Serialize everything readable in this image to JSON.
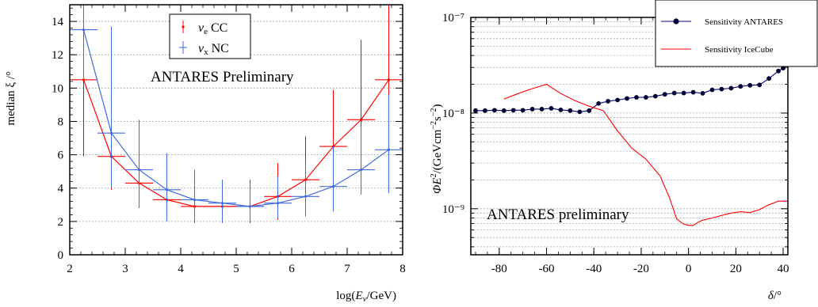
{
  "chart_data": [
    {
      "type": "line",
      "ylabel": "median ξ /°",
      "xlabel": "log(E_ν/GeV)",
      "xlim": [
        2,
        8
      ],
      "ylim": [
        0,
        15
      ],
      "xticks": [
        "2",
        "3",
        "4",
        "5",
        "6",
        "7",
        "8"
      ],
      "yticks": [
        "0",
        "2",
        "4",
        "6",
        "8",
        "10",
        "12",
        "14"
      ],
      "grid": "horizontal-dotted",
      "annotation": "ANTARES Preliminary",
      "legend_position": "top-right",
      "legend_label_prefix": "ν",
      "series": [
        {
          "name": "ν_e CC",
          "label_sub": "e",
          "label_rest": " CC",
          "color": "#ff0000",
          "x": [
            2.25,
            2.75,
            3.25,
            3.75,
            4.25,
            4.75,
            5.25,
            5.75,
            6.25,
            6.75,
            7.25,
            7.75
          ],
          "y": [
            10.5,
            5.9,
            4.3,
            3.3,
            2.9,
            2.9,
            2.9,
            3.5,
            4.5,
            6.5,
            8.1,
            10.5
          ],
          "yerr_low": [
            4.6,
            2.0,
            1.4,
            1.1,
            1.0,
            1.0,
            1.0,
            1.4,
            1.9,
            2.3,
            2.8,
            4.5
          ],
          "yerr_high": [
            4.5,
            4.2,
            1.3,
            1.7,
            1.8,
            1.6,
            1.6,
            2.0,
            2.6,
            3.4,
            4.8,
            4.5
          ]
        },
        {
          "name": "ν_x NC",
          "label_sub": "x",
          "label_rest": " NC",
          "color": "#4169e1",
          "x": [
            2.25,
            2.75,
            3.25,
            3.75,
            4.25,
            4.75,
            5.25,
            5.75,
            6.25,
            6.75,
            7.25,
            7.75
          ],
          "y": [
            13.5,
            7.3,
            5.1,
            3.9,
            3.3,
            3.1,
            2.9,
            3.1,
            3.5,
            4.1,
            5.1,
            6.3
          ],
          "yerr_low": [
            3.0,
            3.3,
            2.3,
            1.9,
            1.4,
            1.2,
            0.9,
            0.9,
            1.2,
            1.5,
            1.5,
            2.6
          ],
          "yerr_high": [
            1.5,
            6.4,
            3.0,
            2.2,
            1.8,
            1.4,
            1.4,
            1.6,
            2.1,
            2.4,
            2.6,
            3.3
          ]
        }
      ]
    },
    {
      "type": "line",
      "ylabel": "ΦE²/(GeVcm⁻²s⁻²)",
      "xlabel": "δ/°",
      "xscale": "linear",
      "yscale": "log",
      "xlim": [
        -92,
        42
      ],
      "ylim": [
        3.3e-10,
        1e-07
      ],
      "xticks": [
        "-80",
        "-60",
        "-40",
        "-20",
        "0",
        "20",
        "40"
      ],
      "yticks": [
        "10⁻⁹",
        "10⁻⁸",
        "10⁻⁷"
      ],
      "grid": "horizontal-dotted",
      "annotation": "ANTARES preliminary",
      "legend_position": "top-right",
      "series": [
        {
          "name": "Sensitivity ANTARES",
          "color": "#00007f",
          "marker_color": "#000033",
          "x": [
            -90,
            -86,
            -82,
            -78,
            -74,
            -70,
            -66,
            -62,
            -58,
            -54,
            -50,
            -46,
            -42,
            -38,
            -34,
            -30,
            -26,
            -22,
            -18,
            -14,
            -10,
            -6,
            -2,
            2,
            6,
            10,
            14,
            18,
            22,
            26,
            30,
            34,
            38,
            40
          ],
          "y": [
            1.06e-08,
            1.06e-08,
            1.07e-08,
            1.06e-08,
            1.07e-08,
            1.07e-08,
            1.1e-08,
            1.1e-08,
            1.12e-08,
            1.08e-08,
            1.06e-08,
            1.03e-08,
            1.06e-08,
            1.26e-08,
            1.33e-08,
            1.37e-08,
            1.42e-08,
            1.46e-08,
            1.46e-08,
            1.5e-08,
            1.57e-08,
            1.62e-08,
            1.62e-08,
            1.65e-08,
            1.61e-08,
            1.75e-08,
            1.78e-08,
            1.82e-08,
            1.9e-08,
            1.95e-08,
            1.97e-08,
            2.3e-08,
            2.75e-08,
            2.95e-08
          ]
        },
        {
          "name": "Sensitivity IceCube",
          "color": "#ff0000",
          "x": [
            -78,
            -72,
            -66,
            -60,
            -54,
            -48,
            -42,
            -36,
            -30,
            -24,
            -18,
            -12,
            -8,
            -5,
            -2,
            0,
            2,
            4,
            6,
            10,
            14,
            18,
            22,
            26,
            30,
            34,
            38,
            42
          ],
          "y": [
            1.4e-08,
            1.6e-08,
            1.8e-08,
            2e-08,
            1.6e-08,
            1.35e-08,
            1.18e-08,
            1.06e-08,
            6.5e-09,
            4.3e-09,
            3.3e-09,
            2.2e-09,
            1.3e-09,
            7.8e-10,
            6.9e-10,
            6.7e-10,
            6.7e-10,
            7.2e-10,
            7.6e-10,
            8e-10,
            8.5e-10,
            9e-10,
            9.3e-10,
            9.1e-10,
            9.8e-10,
            1.1e-09,
            1.2e-09,
            1.2e-09
          ]
        }
      ]
    }
  ]
}
